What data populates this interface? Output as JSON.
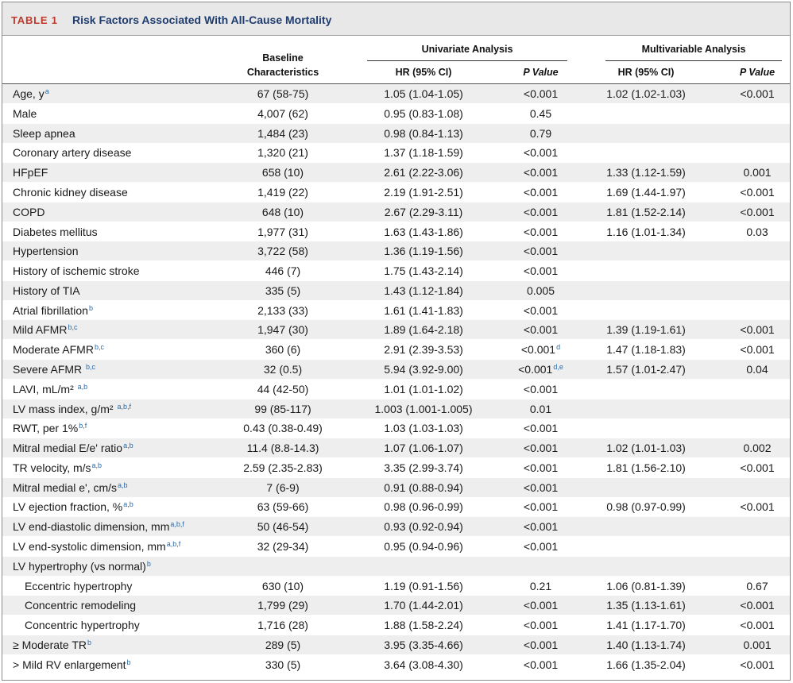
{
  "title": {
    "label": "TABLE 1",
    "text": "Risk Factors Associated With All-Cause Mortality"
  },
  "headers": {
    "baseline_line1": "Baseline",
    "baseline_line2": "Characteristics",
    "univariate": "Univariate Analysis",
    "multivariable": "Multivariable Analysis",
    "hr": "HR (95% CI)",
    "p_value": "P Value"
  },
  "rows": [
    {
      "name": "Age, y",
      "sup": "a",
      "base": "67 (58-75)",
      "uhr": "1.05 (1.04-1.05)",
      "up": "<0.001",
      "mhr": "1.02 (1.02-1.03)",
      "mp": "<0.001"
    },
    {
      "name": "Male",
      "sup": "",
      "base": "4,007 (62)",
      "uhr": "0.95 (0.83-1.08)",
      "up": "0.45",
      "mhr": "",
      "mp": ""
    },
    {
      "name": "Sleep apnea",
      "sup": "",
      "base": "1,484 (23)",
      "uhr": "0.98 (0.84-1.13)",
      "up": "0.79",
      "mhr": "",
      "mp": ""
    },
    {
      "name": "Coronary artery disease",
      "sup": "",
      "base": "1,320 (21)",
      "uhr": "1.37 (1.18-1.59)",
      "up": "<0.001",
      "mhr": "",
      "mp": ""
    },
    {
      "name": "HFpEF",
      "sup": "",
      "base": "658 (10)",
      "uhr": "2.61 (2.22-3.06)",
      "up": "<0.001",
      "mhr": "1.33 (1.12-1.59)",
      "mp": "0.001"
    },
    {
      "name": "Chronic kidney disease",
      "sup": "",
      "base": "1,419 (22)",
      "uhr": "2.19 (1.91-2.51)",
      "up": "<0.001",
      "mhr": "1.69 (1.44-1.97)",
      "mp": "<0.001"
    },
    {
      "name": "COPD",
      "sup": "",
      "base": "648 (10)",
      "uhr": "2.67 (2.29-3.11)",
      "up": "<0.001",
      "mhr": "1.81 (1.52-2.14)",
      "mp": "<0.001"
    },
    {
      "name": "Diabetes mellitus",
      "sup": "",
      "base": "1,977 (31)",
      "uhr": "1.63 (1.43-1.86)",
      "up": "<0.001",
      "mhr": "1.16 (1.01-1.34)",
      "mp": "0.03"
    },
    {
      "name": "Hypertension",
      "sup": "",
      "base": "3,722 (58)",
      "uhr": "1.36 (1.19-1.56)",
      "up": "<0.001",
      "mhr": "",
      "mp": ""
    },
    {
      "name": "History of ischemic stroke",
      "sup": "",
      "base": "446 (7)",
      "uhr": "1.75 (1.43-2.14)",
      "up": "<0.001",
      "mhr": "",
      "mp": ""
    },
    {
      "name": "History of TIA",
      "sup": "",
      "base": "335 (5)",
      "uhr": "1.43 (1.12-1.84)",
      "up": "0.005",
      "mhr": "",
      "mp": ""
    },
    {
      "name": "Atrial fibrillation",
      "sup": "b",
      "base": "2,133 (33)",
      "uhr": "1.61 (1.41-1.83)",
      "up": "<0.001",
      "mhr": "",
      "mp": ""
    },
    {
      "name": "Mild AFMR",
      "sup": "b,c",
      "base": "1,947 (30)",
      "uhr": "1.89 (1.64-2.18)",
      "up": "<0.001",
      "mhr": "1.39 (1.19-1.61)",
      "mp": "<0.001"
    },
    {
      "name": "Moderate AFMR",
      "sup": "b,c",
      "base": "360 (6)",
      "uhr": "2.91 (2.39-3.53)",
      "up": "<0.001",
      "up_sup": "d",
      "mhr": "1.47 (1.18-1.83)",
      "mp": "<0.001"
    },
    {
      "name": "Severe AFMR ",
      "sup": "b,c",
      "base": "32 (0.5)",
      "uhr": "5.94 (3.92-9.00)",
      "up": "<0.001",
      "up_sup": "d,e",
      "mhr": "1.57 (1.01-2.47)",
      "mp": "0.04"
    },
    {
      "name": "LAVI, mL/m² ",
      "sup": "a,b",
      "base": "44 (42-50)",
      "uhr": "1.01 (1.01-1.02)",
      "up": "<0.001",
      "mhr": "",
      "mp": ""
    },
    {
      "name": "LV mass index, g/m² ",
      "sup": "a,b,f",
      "base": "99 (85-117)",
      "uhr": "1.003 (1.001-1.005)",
      "up": "0.01",
      "mhr": "",
      "mp": ""
    },
    {
      "name": "RWT, per 1%",
      "sup": "b,f",
      "base": "0.43 (0.38-0.49)",
      "uhr": "1.03 (1.03-1.03)",
      "up": "<0.001",
      "mhr": "",
      "mp": ""
    },
    {
      "name": "Mitral medial E/e' ratio",
      "sup": "a,b",
      "base": "11.4 (8.8-14.3)",
      "uhr": "1.07 (1.06-1.07)",
      "up": "<0.001",
      "mhr": "1.02 (1.01-1.03)",
      "mp": "0.002"
    },
    {
      "name": "TR velocity, m/s",
      "sup": "a,b",
      "base": "2.59 (2.35-2.83)",
      "uhr": "3.35 (2.99-3.74)",
      "up": "<0.001",
      "mhr": "1.81 (1.56-2.10)",
      "mp": "<0.001"
    },
    {
      "name": "Mitral medial e', cm/s",
      "sup": "a,b",
      "base": "7 (6-9)",
      "uhr": "0.91 (0.88-0.94)",
      "up": "<0.001",
      "mhr": "",
      "mp": ""
    },
    {
      "name": "LV ejection fraction, %",
      "sup": "a,b",
      "base": "63 (59-66)",
      "uhr": "0.98 (0.96-0.99)",
      "up": "<0.001",
      "mhr": "0.98 (0.97-0.99)",
      "mp": "<0.001"
    },
    {
      "name": "LV end-diastolic dimension, mm",
      "sup": "a,b,f",
      "base": "50 (46-54)",
      "uhr": "0.93 (0.92-0.94)",
      "up": "<0.001",
      "mhr": "",
      "mp": ""
    },
    {
      "name": "LV end-systolic dimension, mm",
      "sup": "a,b,f",
      "base": "32 (29-34)",
      "uhr": "0.95 (0.94-0.96)",
      "up": "<0.001",
      "mhr": "",
      "mp": ""
    },
    {
      "name": "LV hypertrophy (vs normal)",
      "sup": "b",
      "base": "",
      "uhr": "",
      "up": "",
      "mhr": "",
      "mp": ""
    },
    {
      "name": "Eccentric hypertrophy",
      "sup": "",
      "indent": true,
      "base": "630 (10)",
      "uhr": "1.19 (0.91-1.56)",
      "up": "0.21",
      "mhr": "1.06 (0.81-1.39)",
      "mp": "0.67"
    },
    {
      "name": "Concentric remodeling",
      "sup": "",
      "indent": true,
      "base": "1,799 (29)",
      "uhr": "1.70 (1.44-2.01)",
      "up": "<0.001",
      "mhr": "1.35 (1.13-1.61)",
      "mp": "<0.001"
    },
    {
      "name": "Concentric hypertrophy",
      "sup": "",
      "indent": true,
      "base": "1,716 (28)",
      "uhr": "1.88 (1.58-2.24)",
      "up": "<0.001",
      "mhr": "1.41 (1.17-1.70)",
      "mp": "<0.001"
    },
    {
      "name": "≥ Moderate TR",
      "sup": "b",
      "base": "289 (5)",
      "uhr": "3.95 (3.35-4.66)",
      "up": "<0.001",
      "mhr": "1.40 (1.13-1.74)",
      "mp": "0.001"
    },
    {
      "name": "> Mild RV enlargement",
      "sup": "b",
      "base": "330 (5)",
      "uhr": "3.64 (3.08-4.30)",
      "up": "<0.001",
      "mhr": "1.66 (1.35-2.04)",
      "mp": "<0.001"
    }
  ]
}
